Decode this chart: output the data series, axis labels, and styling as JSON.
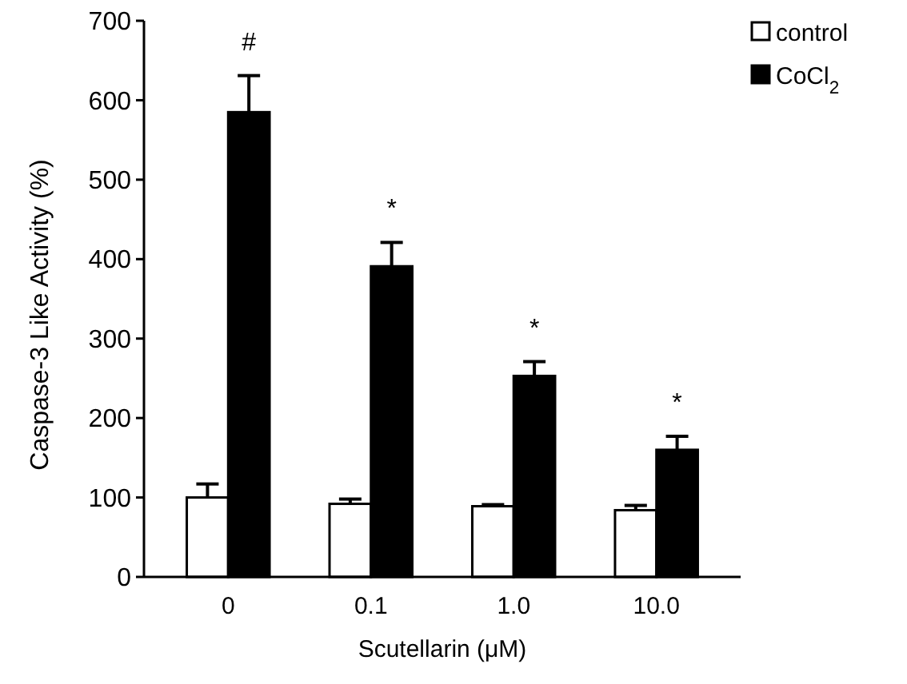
{
  "chart_data": {
    "type": "bar",
    "xlabel": "Scutellarin (μM)",
    "ylabel": "Caspase-3 Like Activity (%)",
    "categories": [
      "0",
      "0.1",
      "1.0",
      "10.0"
    ],
    "series": [
      {
        "name": "control",
        "color": "#ffffff",
        "values": [
          100,
          92,
          89,
          84
        ],
        "errors": [
          [
            100,
            117
          ],
          [
            92,
            98
          ],
          [
            89,
            91
          ],
          [
            84,
            90
          ]
        ]
      },
      {
        "name": "CoCl$_{2}$",
        "color": "#000000",
        "values": [
          585,
          391,
          253,
          160
        ],
        "errors": [
          [
            585,
            631
          ],
          [
            391,
            421
          ],
          [
            253,
            271
          ],
          [
            160,
            177
          ]
        ]
      }
    ],
    "ylim": [
      0,
      700
    ],
    "yticks": [
      0,
      100,
      200,
      300,
      400,
      500,
      600,
      700
    ],
    "grid": false,
    "legend": "top right",
    "annotations": [
      "#",
      "*",
      "*",
      "*"
    ]
  }
}
